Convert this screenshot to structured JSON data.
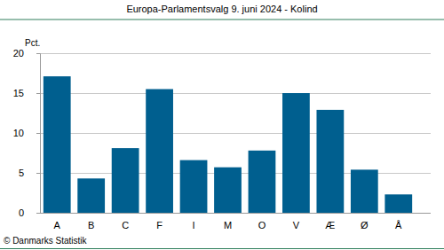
{
  "chart_data": {
    "type": "bar",
    "title": "Europa-Parlamentsvalg 9. juni 2024 - Kolind",
    "y_label": "Pct.",
    "source": "© Danmarks Statistik",
    "categories": [
      "A",
      "B",
      "C",
      "F",
      "I",
      "M",
      "O",
      "V",
      "Æ",
      "Ø",
      "Å"
    ],
    "values": [
      17.1,
      4.3,
      8.1,
      15.5,
      6.6,
      5.7,
      7.8,
      15.0,
      12.9,
      5.4,
      2.3
    ],
    "color": "#005f8f",
    "ylim": [
      0,
      20
    ],
    "yticks": [
      0,
      5,
      10,
      15,
      20
    ],
    "grid": true
  }
}
